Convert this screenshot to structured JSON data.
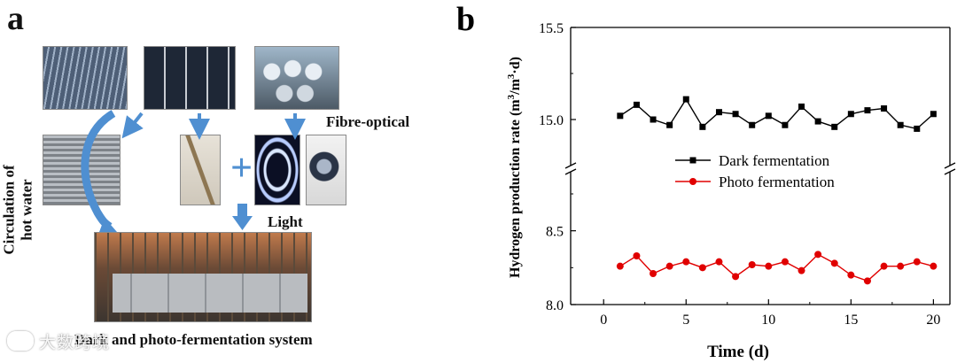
{
  "panel_a": {
    "letter": "a",
    "label_circulation": [
      "Circulation of",
      "hot water"
    ],
    "label_fibre": "Fibre-optical",
    "label_light": "Light",
    "label_system": "Dark and photo-fermentation system",
    "plus_sign": "+"
  },
  "watermark": "大数跨境",
  "colors": {
    "arrow": "#4f8fd1",
    "dark_series": "#000000",
    "photo_series": "#e00000"
  },
  "chart_data": {
    "type": "line",
    "panel_letter": "b",
    "xlabel": "Time (d)",
    "ylabel": "Hydrogen production rate (m³/m³·d)",
    "xlim": [
      -2,
      21
    ],
    "xticks": [
      0,
      5,
      10,
      15,
      20
    ],
    "x_tick_labels": [
      "0",
      "5",
      "10",
      "15",
      "20"
    ],
    "broken_y_axis": true,
    "upper_ylim": [
      14.75,
      15.5
    ],
    "upper_yticks": [
      15.0,
      15.5
    ],
    "upper_tick_labels": [
      "15.0",
      "15.5"
    ],
    "lower_ylim": [
      8.0,
      8.9
    ],
    "lower_yticks": [
      8.0,
      8.5
    ],
    "lower_tick_labels": [
      "8.0",
      "8.5"
    ],
    "legend_position": "middle",
    "x": [
      1,
      2,
      3,
      4,
      5,
      6,
      7,
      8,
      9,
      10,
      11,
      12,
      13,
      14,
      15,
      16,
      17,
      18,
      19,
      20
    ],
    "series": [
      {
        "name": "Dark fermentation",
        "marker": "square",
        "color": "#000000",
        "values": [
          15.02,
          15.08,
          15.0,
          14.97,
          15.11,
          14.96,
          15.04,
          15.03,
          14.97,
          15.02,
          14.97,
          15.07,
          14.99,
          14.96,
          15.03,
          15.05,
          15.06,
          14.97,
          14.95,
          15.03
        ]
      },
      {
        "name": "Photo fermentation",
        "marker": "circle",
        "color": "#e00000",
        "values": [
          8.26,
          8.33,
          8.21,
          8.26,
          8.29,
          8.25,
          8.29,
          8.19,
          8.27,
          8.26,
          8.29,
          8.23,
          8.34,
          8.28,
          8.2,
          8.16,
          8.26,
          8.26,
          8.29,
          8.26
        ]
      }
    ]
  }
}
